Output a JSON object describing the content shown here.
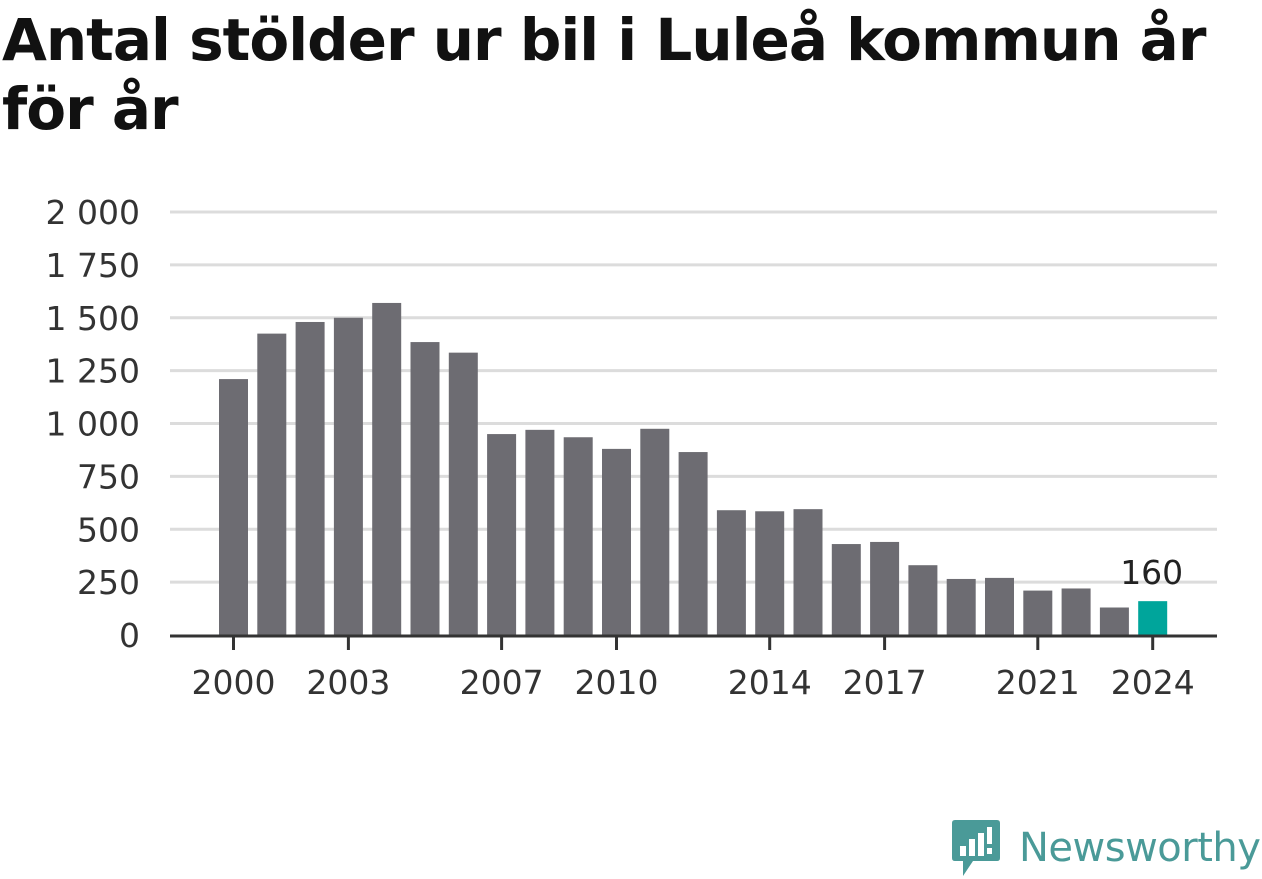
{
  "chart_data": {
    "type": "bar",
    "title": "Antal stölder ur bil i Luleå kommun år för år",
    "xlabel": "",
    "ylabel": "",
    "categories": [
      "2000",
      "2001",
      "2002",
      "2003",
      "2004",
      "2005",
      "2006",
      "2007",
      "2008",
      "2009",
      "2010",
      "2011",
      "2012",
      "2013",
      "2014",
      "2015",
      "2016",
      "2017",
      "2018",
      "2019",
      "2020",
      "2021",
      "2022",
      "2023",
      "2024"
    ],
    "x_tick_labels": [
      "2000",
      "2003",
      "2007",
      "2010",
      "2014",
      "2017",
      "2021",
      "2024"
    ],
    "values": [
      1210,
      1425,
      1480,
      1500,
      1570,
      1385,
      1335,
      950,
      970,
      935,
      880,
      975,
      865,
      590,
      585,
      595,
      430,
      440,
      330,
      265,
      270,
      210,
      220,
      130,
      160
    ],
    "ylim": [
      0,
      2000
    ],
    "y_ticks": [
      0,
      250,
      500,
      750,
      1000,
      1250,
      1500,
      1750,
      2000
    ],
    "y_tick_labels": [
      "0",
      "250",
      "500",
      "750",
      "1 000",
      "1 250",
      "1 500",
      "1 750",
      "2 000"
    ],
    "highlight": {
      "category": "2024",
      "label": "160"
    },
    "grid": true,
    "colors": {
      "bar": "#6d6c72",
      "highlight": "#00a59b",
      "grid": "#dcdcdc",
      "axis": "#333333"
    }
  },
  "branding": {
    "name": "Newsworthy",
    "icon": "newsworthy-logo-icon",
    "color": "#4a9a98"
  }
}
